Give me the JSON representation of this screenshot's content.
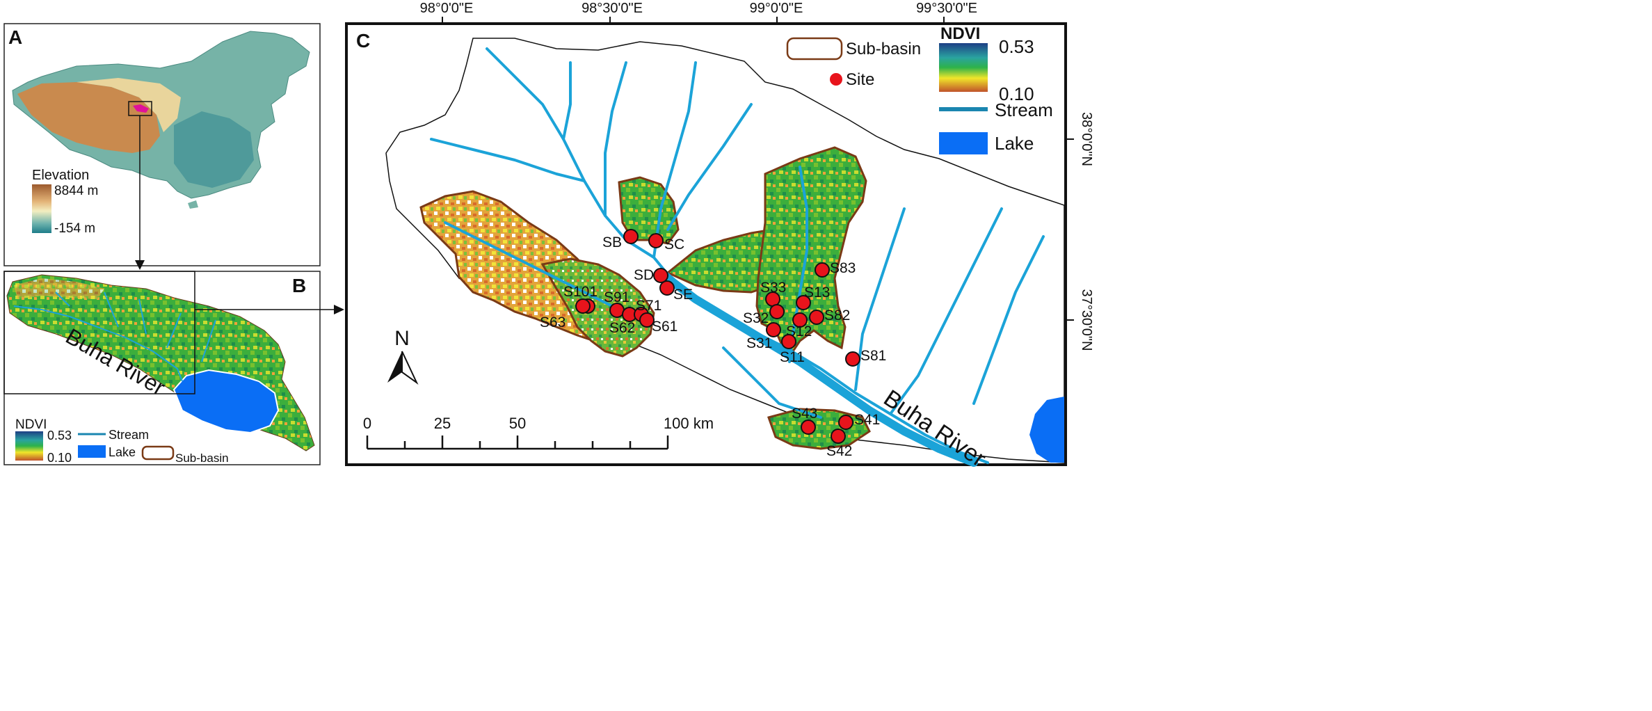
{
  "panels": {
    "a": {
      "letter": "A",
      "legend_title": "Elevation",
      "elev_max": "8844 m",
      "elev_min": "-154 m"
    },
    "b": {
      "letter": "B",
      "river_label": "Buha River",
      "ndvi_title": "NDVI",
      "ndvi_max": "0.53",
      "ndvi_min": "0.10",
      "stream_label": "Stream",
      "lake_label": "Lake",
      "subbasin_label": "Sub-basin"
    },
    "c": {
      "letter": "C",
      "river_label": "Buha River",
      "legend": {
        "subbasin": "Sub-basin",
        "site": "Site",
        "ndvi_title": "NDVI",
        "ndvi_max": "0.53",
        "ndvi_min": "0.10",
        "stream": "Stream",
        "lake": "Lake"
      },
      "north": "N",
      "scale_labels": [
        "0",
        "25",
        "50",
        "100 km"
      ]
    }
  },
  "coordinates": {
    "longitudes": [
      "98°0'0\"E",
      "98°30'0\"E",
      "99°0'0\"E",
      "99°30'0\"E"
    ],
    "latitudes": [
      "38°0'0\"N",
      "37°30'0\"N"
    ]
  },
  "sites": [
    {
      "id": "SB"
    },
    {
      "id": "SC"
    },
    {
      "id": "SD"
    },
    {
      "id": "SE"
    },
    {
      "id": "S101"
    },
    {
      "id": "S63"
    },
    {
      "id": "S91"
    },
    {
      "id": "S62"
    },
    {
      "id": "S71"
    },
    {
      "id": "S61"
    },
    {
      "id": "S33"
    },
    {
      "id": "S32"
    },
    {
      "id": "S31"
    },
    {
      "id": "S13"
    },
    {
      "id": "S12"
    },
    {
      "id": "S11"
    },
    {
      "id": "S83"
    },
    {
      "id": "S82"
    },
    {
      "id": "S81"
    },
    {
      "id": "S43"
    },
    {
      "id": "S41"
    },
    {
      "id": "S42"
    }
  ],
  "colors": {
    "site": "#e8141c",
    "stream": "#1ba3d8",
    "lake": "#0a6ef5",
    "subbasin": "#7a3a16",
    "ndvi_high": "#1d3f85",
    "ndvi_mid": "#2db24a",
    "ndvi_yellow": "#f0e62a",
    "ndvi_low": "#c0522a"
  }
}
